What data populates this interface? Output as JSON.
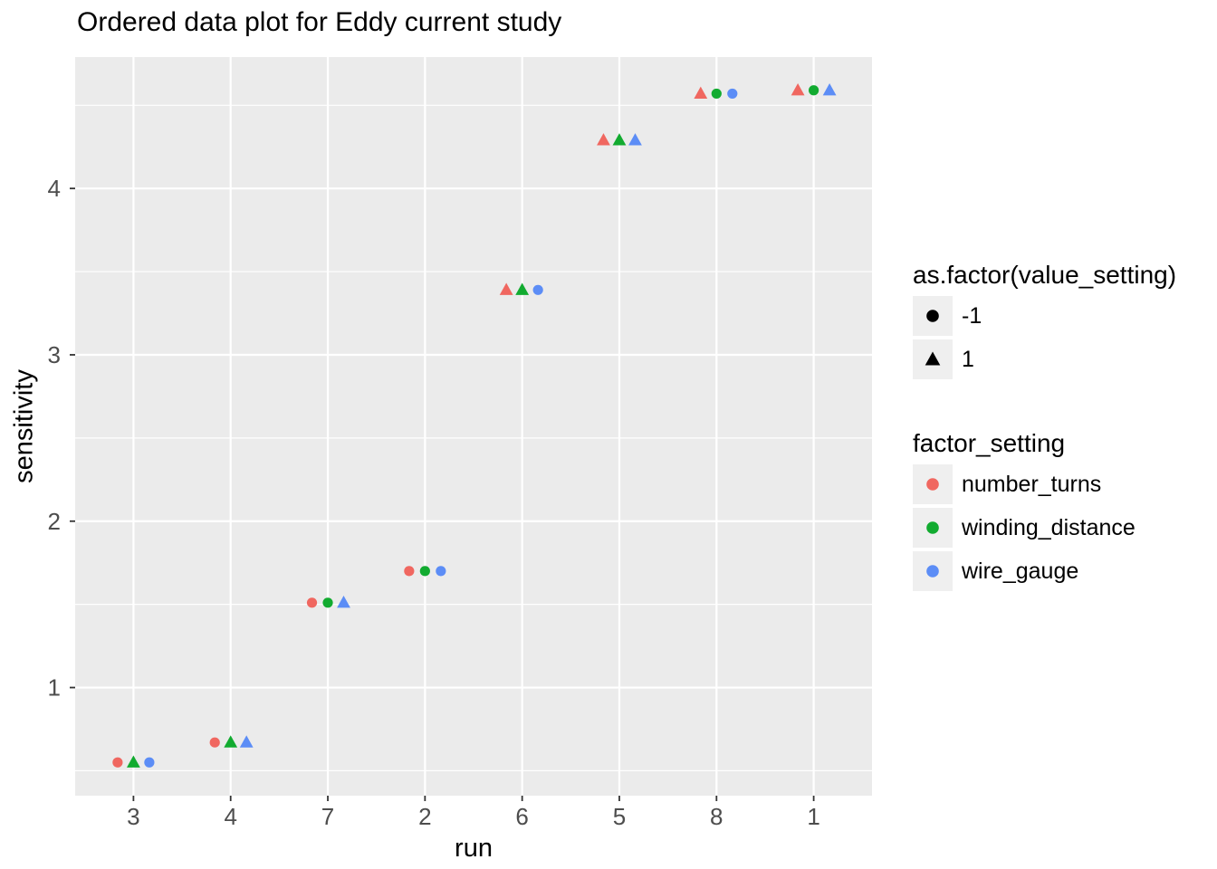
{
  "title": "Ordered data plot for Eddy current study",
  "chart_data": {
    "type": "scatter",
    "title": "Ordered data plot for Eddy current study",
    "xlabel": "run",
    "ylabel": "sensitivity",
    "x_categories": [
      "3",
      "4",
      "7",
      "2",
      "6",
      "5",
      "8",
      "1"
    ],
    "y_major_ticks": [
      1,
      2,
      3,
      4
    ],
    "y_minor_ticks": [
      0.5,
      1.5,
      2.5,
      3.5,
      4.5
    ],
    "ylim": [
      0.35,
      4.79
    ],
    "grid": true,
    "legend_position": "right",
    "shape_encoding": {
      "variable": "as.factor(value_setting)",
      "map": {
        "-1": "circle",
        "1": "triangle"
      }
    },
    "factors_order": [
      "number_turns",
      "winding_distance",
      "wire_gauge"
    ],
    "factor_colors": {
      "number_turns": "#F06760",
      "winding_distance": "#12AB30",
      "wire_gauge": "#5C8DF6"
    },
    "runs": [
      {
        "run": "3",
        "sensitivity": 0.55,
        "value_settings": {
          "number_turns": -1,
          "winding_distance": 1,
          "wire_gauge": -1
        }
      },
      {
        "run": "4",
        "sensitivity": 0.67,
        "value_settings": {
          "number_turns": -1,
          "winding_distance": 1,
          "wire_gauge": 1
        }
      },
      {
        "run": "7",
        "sensitivity": 1.51,
        "value_settings": {
          "number_turns": -1,
          "winding_distance": -1,
          "wire_gauge": 1
        }
      },
      {
        "run": "2",
        "sensitivity": 1.7,
        "value_settings": {
          "number_turns": -1,
          "winding_distance": -1,
          "wire_gauge": -1
        }
      },
      {
        "run": "6",
        "sensitivity": 3.39,
        "value_settings": {
          "number_turns": 1,
          "winding_distance": 1,
          "wire_gauge": -1
        }
      },
      {
        "run": "5",
        "sensitivity": 4.29,
        "value_settings": {
          "number_turns": 1,
          "winding_distance": 1,
          "wire_gauge": 1
        }
      },
      {
        "run": "8",
        "sensitivity": 4.57,
        "value_settings": {
          "number_turns": 1,
          "winding_distance": -1,
          "wire_gauge": -1
        }
      },
      {
        "run": "1",
        "sensitivity": 4.59,
        "value_settings": {
          "number_turns": 1,
          "winding_distance": -1,
          "wire_gauge": 1
        }
      }
    ]
  },
  "legends": {
    "shape": {
      "title": "as.factor(value_setting)",
      "glyph_color": "#000000",
      "entries": [
        {
          "label": "-1",
          "shape": "circle"
        },
        {
          "label": "1",
          "shape": "triangle"
        }
      ]
    },
    "color": {
      "title": "factor_setting",
      "entries": [
        {
          "label": "number_turns",
          "color": "#F06760"
        },
        {
          "label": "winding_distance",
          "color": "#12AB30"
        },
        {
          "label": "wire_gauge",
          "color": "#5C8DF6"
        }
      ]
    }
  },
  "theme": {
    "panel_bg": "#EBEBEB",
    "grid_color": "#FFFFFF",
    "axis_tick_color": "#333333",
    "tick_label_color": "#4D4D4D",
    "legend_key_bg": "#EFEFEF"
  }
}
